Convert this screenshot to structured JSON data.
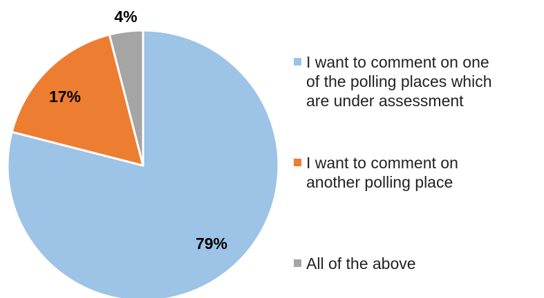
{
  "chart_data": {
    "type": "pie",
    "slices": [
      {
        "label": "I want to comment on one\nof the polling places which\nare under assessment",
        "value": 79,
        "display": "79%",
        "color": "#9DC3E6"
      },
      {
        "label": "I want to comment on\nanother polling place",
        "value": 17,
        "display": "17%",
        "color": "#ED7D31"
      },
      {
        "label": "All of the above",
        "value": 4,
        "display": "4%",
        "color": "#A5A5A5"
      }
    ],
    "legend_position": "right",
    "start_angle": "12 o'clock",
    "direction": "clockwise"
  }
}
